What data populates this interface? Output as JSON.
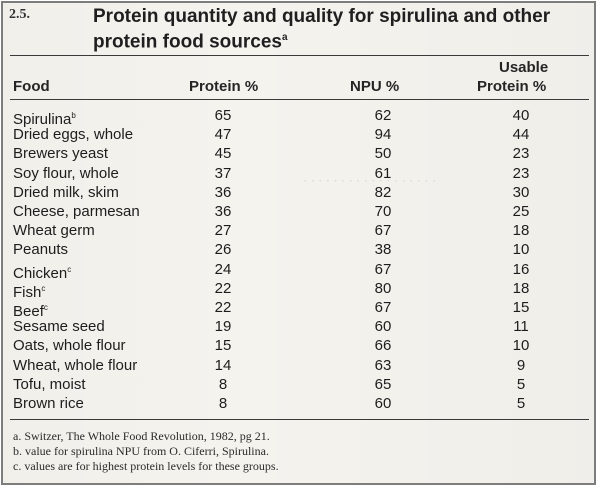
{
  "table": {
    "number": "2.5.",
    "title": "Protein quantity and quality for spirulina and other protein food sources",
    "title_note": "a",
    "headers": {
      "food": "Food",
      "protein": "Protein %",
      "npu": "NPU %",
      "usable_line1": "Usable",
      "usable_line2": "Protein %"
    },
    "rows": [
      {
        "food": "Spirulina",
        "note": "b",
        "protein": "65",
        "npu": "62",
        "usable": "40"
      },
      {
        "food": "Dried eggs, whole",
        "note": "",
        "protein": "47",
        "npu": "94",
        "usable": "44"
      },
      {
        "food": "Brewers yeast",
        "note": "",
        "protein": "45",
        "npu": "50",
        "usable": "23"
      },
      {
        "food": "Soy flour, whole",
        "note": "",
        "protein": "37",
        "npu": "61",
        "usable": "23"
      },
      {
        "food": "Dried milk, skim",
        "note": "",
        "protein": "36",
        "npu": "82",
        "usable": "30"
      },
      {
        "food": "Cheese, parmesan",
        "note": "",
        "protein": "36",
        "npu": "70",
        "usable": "25"
      },
      {
        "food": "Wheat germ",
        "note": "",
        "protein": "27",
        "npu": "67",
        "usable": "18"
      },
      {
        "food": "Peanuts",
        "note": "",
        "protein": "26",
        "npu": "38",
        "usable": "10"
      },
      {
        "food": "Chicken",
        "note": "c",
        "protein": "24",
        "npu": "67",
        "usable": "16"
      },
      {
        "food": "Fish",
        "note": "c",
        "protein": "22",
        "npu": "80",
        "usable": "18"
      },
      {
        "food": "Beef",
        "note": "c",
        "protein": "22",
        "npu": "67",
        "usable": "15"
      },
      {
        "food": "Sesame seed",
        "note": "",
        "protein": "19",
        "npu": "60",
        "usable": "11"
      },
      {
        "food": "Oats, whole flour",
        "note": "",
        "protein": "15",
        "npu": "66",
        "usable": "10"
      },
      {
        "food": "Wheat, whole flour",
        "note": "",
        "protein": "14",
        "npu": "63",
        "usable": "9"
      },
      {
        "food": "Tofu, moist",
        "note": "",
        "protein": "8",
        "npu": "65",
        "usable": "5"
      },
      {
        "food": "Brown rice",
        "note": "",
        "protein": "8",
        "npu": "60",
        "usable": "5"
      }
    ],
    "footnotes": [
      "a. Switzer, The Whole Food Revolution, 1982, pg 21.",
      "b. value for spirulina NPU from O. Ciferri, Spirulina.",
      "c. values are for highest protein levels for these groups."
    ]
  }
}
